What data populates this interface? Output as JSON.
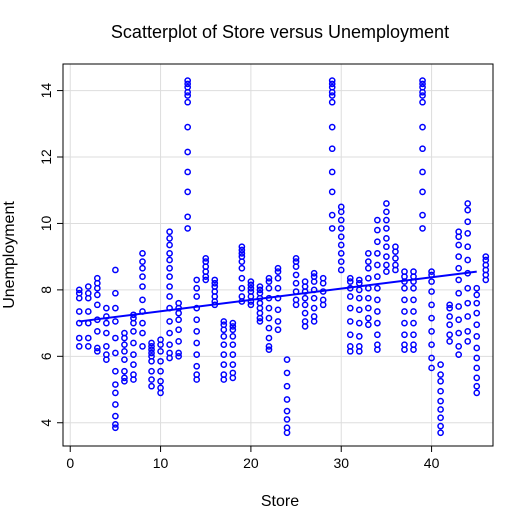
{
  "chart_data": {
    "type": "scatter",
    "title": "Scatterplot of Store versus Unemployment",
    "xlabel": "Store",
    "ylabel": "Unemployment",
    "xlim": [
      -0.8,
      46.8
    ],
    "ylim": [
      3.3,
      14.8
    ],
    "x_ticks": [
      0,
      10,
      20,
      30,
      40
    ],
    "y_ticks": [
      4,
      6,
      8,
      10,
      12,
      14
    ],
    "grid": true,
    "point_color": "#0000ff",
    "line_color": "#0000ff",
    "regression_line": {
      "x": [
        1,
        45
      ],
      "y": [
        7.05,
        8.55
      ]
    },
    "points": [
      {
        "x": 1,
        "y": [
          6.3,
          6.55,
          7.0,
          7.35,
          7.75,
          7.9,
          8.0
        ]
      },
      {
        "x": 2,
        "y": [
          6.3,
          6.55,
          7.0,
          7.35,
          7.75,
          7.9,
          8.1
        ]
      },
      {
        "x": 3,
        "y": [
          6.15,
          6.25,
          6.75,
          7.1,
          7.55,
          7.85,
          8.05,
          8.2,
          8.35
        ]
      },
      {
        "x": 4,
        "y": [
          5.9,
          6.05,
          6.3,
          6.7,
          7.0,
          7.2,
          7.45
        ]
      },
      {
        "x": 5,
        "y": [
          3.85,
          3.95,
          4.2,
          4.55,
          4.9,
          5.15,
          5.55,
          6.1,
          6.55,
          7.05,
          7.45,
          7.9,
          8.6
        ]
      },
      {
        "x": 6,
        "y": [
          5.25,
          5.35,
          5.55,
          5.9,
          6.15,
          6.35,
          6.55,
          6.7
        ]
      },
      {
        "x": 7,
        "y": [
          5.3,
          5.45,
          5.75,
          6.05,
          6.4,
          6.75,
          7.0,
          7.15,
          7.25
        ]
      },
      {
        "x": 8,
        "y": [
          6.3,
          6.7,
          7.0,
          7.35,
          7.7,
          8.1,
          8.4,
          8.65,
          8.85,
          9.1
        ]
      },
      {
        "x": 9,
        "y": [
          5.1,
          5.3,
          5.55,
          5.85,
          6.0,
          6.1,
          6.2,
          6.3,
          6.4
        ]
      },
      {
        "x": 10,
        "y": [
          4.9,
          5.05,
          5.25,
          5.55,
          5.85,
          6.15,
          6.35,
          6.5
        ]
      },
      {
        "x": 11,
        "y": [
          5.95,
          6.1,
          6.35,
          6.7,
          7.05,
          7.45,
          7.8,
          8.1,
          8.4,
          8.65,
          8.9,
          9.1,
          9.35,
          9.55,
          9.75
        ]
      },
      {
        "x": 12,
        "y": [
          6.0,
          6.1,
          6.45,
          6.8,
          7.1,
          7.3,
          7.45,
          7.6
        ]
      },
      {
        "x": 13,
        "y": [
          9.85,
          10.2,
          10.95,
          11.55,
          12.15,
          12.9,
          13.65,
          13.85,
          13.95,
          14.1,
          14.2,
          14.3
        ]
      },
      {
        "x": 14,
        "y": [
          5.3,
          5.45,
          5.7,
          6.05,
          6.4,
          6.75,
          7.1,
          7.45,
          7.8,
          8.05,
          8.3
        ]
      },
      {
        "x": 15,
        "y": [
          8.3,
          8.4,
          8.55,
          8.7,
          8.85,
          8.95
        ]
      },
      {
        "x": 16,
        "y": [
          7.55,
          7.65,
          7.8,
          7.95,
          8.1,
          8.2,
          8.3
        ]
      },
      {
        "x": 17,
        "y": [
          5.3,
          5.45,
          5.75,
          6.05,
          6.35,
          6.6,
          6.8,
          6.95,
          7.05
        ]
      },
      {
        "x": 18,
        "y": [
          5.35,
          5.5,
          5.75,
          6.05,
          6.35,
          6.6,
          6.8,
          6.9,
          7.0
        ]
      },
      {
        "x": 19,
        "y": [
          7.65,
          7.8,
          8.05,
          8.35,
          8.65,
          8.85,
          9.0,
          9.1,
          9.2,
          9.3
        ]
      },
      {
        "x": 20,
        "y": [
          7.55,
          7.65,
          7.8,
          7.95,
          8.05,
          8.15,
          8.25
        ]
      },
      {
        "x": 21,
        "y": [
          7.05,
          7.15,
          7.3,
          7.45,
          7.6,
          7.75,
          7.9,
          8.0,
          8.1
        ]
      },
      {
        "x": 22,
        "y": [
          6.2,
          6.3,
          6.55,
          6.85,
          7.15,
          7.45,
          7.75,
          8.05,
          8.25,
          8.35
        ]
      },
      {
        "x": 23,
        "y": [
          6.8,
          7.05,
          7.4,
          7.75,
          8.05,
          8.35,
          8.55,
          8.65
        ]
      },
      {
        "x": 24,
        "y": [
          3.7,
          3.85,
          4.1,
          4.35,
          4.7,
          5.1,
          5.5,
          5.9
        ]
      },
      {
        "x": 25,
        "y": [
          7.55,
          7.7,
          7.95,
          8.2,
          8.45,
          8.7,
          8.85,
          8.95
        ]
      },
      {
        "x": 26,
        "y": [
          6.9,
          7.05,
          7.3,
          7.55,
          7.75,
          7.95,
          8.1,
          8.25
        ]
      },
      {
        "x": 27,
        "y": [
          7.05,
          7.2,
          7.45,
          7.75,
          8.0,
          8.25,
          8.4,
          8.5
        ]
      },
      {
        "x": 28,
        "y": [
          7.55,
          7.7,
          7.95,
          8.2,
          8.35
        ]
      },
      {
        "x": 29,
        "y": [
          9.85,
          10.25,
          10.95,
          11.55,
          12.25,
          12.9,
          13.65,
          13.85,
          13.95,
          14.1,
          14.2,
          14.3
        ]
      },
      {
        "x": 30,
        "y": [
          8.6,
          8.85,
          9.1,
          9.35,
          9.6,
          9.85,
          10.1,
          10.35,
          10.5
        ]
      },
      {
        "x": 31,
        "y": [
          6.15,
          6.3,
          6.65,
          7.05,
          7.45,
          7.8,
          8.05,
          8.25,
          8.35
        ]
      },
      {
        "x": 32,
        "y": [
          6.15,
          6.3,
          6.6,
          7.0,
          7.4,
          7.75,
          8.0,
          8.2,
          8.3
        ]
      },
      {
        "x": 33,
        "y": [
          6.95,
          7.15,
          7.45,
          7.75,
          8.05,
          8.35,
          8.65,
          8.85,
          9.1
        ]
      },
      {
        "x": 34,
        "y": [
          6.2,
          6.35,
          6.65,
          7.0,
          7.35,
          7.7,
          8.05,
          8.4,
          8.75,
          9.1,
          9.45,
          9.8,
          10.1
        ]
      },
      {
        "x": 35,
        "y": [
          8.55,
          8.75,
          9.0,
          9.3,
          9.55,
          9.85,
          10.1,
          10.35,
          10.6
        ]
      },
      {
        "x": 36,
        "y": [
          8.6,
          8.75,
          8.95,
          9.15,
          9.3
        ]
      },
      {
        "x": 37,
        "y": [
          6.2,
          6.35,
          6.65,
          7.0,
          7.35,
          7.7,
          8.05,
          8.25,
          8.4,
          8.55
        ]
      },
      {
        "x": 38,
        "y": [
          6.2,
          6.35,
          6.65,
          7.0,
          7.35,
          7.7,
          8.05,
          8.25,
          8.4,
          8.55
        ]
      },
      {
        "x": 39,
        "y": [
          9.85,
          10.25,
          10.95,
          11.55,
          12.25,
          12.9,
          13.65,
          13.85,
          13.95,
          14.1,
          14.2,
          14.3
        ]
      },
      {
        "x": 40,
        "y": [
          5.65,
          5.95,
          6.35,
          6.75,
          7.15,
          7.55,
          7.95,
          8.25,
          8.45,
          8.55
        ]
      },
      {
        "x": 41,
        "y": [
          3.7,
          3.9,
          4.15,
          4.4,
          4.65,
          4.95,
          5.25,
          5.45,
          5.75
        ]
      },
      {
        "x": 42,
        "y": [
          6.45,
          6.65,
          6.95,
          7.2,
          7.45,
          7.55
        ]
      },
      {
        "x": 43,
        "y": [
          6.05,
          6.3,
          6.7,
          7.1,
          7.5,
          7.9,
          8.3,
          8.65,
          9.0,
          9.35,
          9.6,
          9.75
        ]
      },
      {
        "x": 44,
        "y": [
          6.45,
          6.75,
          7.2,
          7.6,
          8.05,
          8.5,
          8.9,
          9.3,
          9.7,
          10.05,
          10.4,
          10.6
        ]
      },
      {
        "x": 45,
        "y": [
          4.9,
          5.1,
          5.35,
          5.65,
          5.95,
          6.25,
          6.6,
          6.95,
          7.3,
          7.6,
          7.85,
          8.05
        ]
      },
      {
        "x": 46,
        "y": [
          8.3,
          8.45,
          8.6,
          8.75,
          8.9,
          9.0
        ]
      }
    ]
  }
}
